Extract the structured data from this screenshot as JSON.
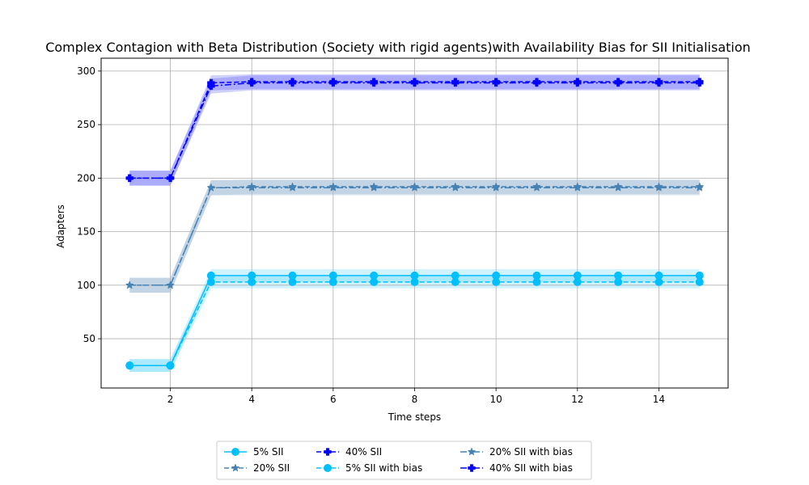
{
  "chart_data": {
    "type": "line",
    "title": "Complex Contagion with Beta Distribution (Society with rigid agents)with Availability Bias for SII Initialisation",
    "xlabel": "Time steps",
    "ylabel": "Adapters",
    "xlim": [
      0.3,
      15.7
    ],
    "ylim": [
      4,
      312
    ],
    "xticks": [
      2,
      4,
      6,
      8,
      10,
      12,
      14
    ],
    "yticks": [
      50,
      100,
      150,
      200,
      250,
      300
    ],
    "grid": true,
    "legend_position": "bottom-center, below axes, 3 columns",
    "x": [
      1,
      2,
      3,
      4,
      5,
      6,
      7,
      8,
      9,
      10,
      11,
      12,
      13,
      14,
      15
    ],
    "series": [
      {
        "name": "5% SII",
        "color": "#00bfff",
        "linestyle": "solid",
        "marker": "circle",
        "values": [
          25,
          25,
          109,
          109,
          109,
          109,
          109,
          109,
          109,
          109,
          109,
          109,
          109,
          109,
          109
        ],
        "band": 6
      },
      {
        "name": "20% SII",
        "color": "#4682b4",
        "linestyle": "dashed",
        "marker": "star",
        "values": [
          100,
          100,
          191,
          192,
          192,
          192,
          192,
          192,
          192,
          192,
          192,
          192,
          192,
          192,
          192
        ],
        "band": 7
      },
      {
        "name": "40% SII",
        "color": "#0000ff",
        "linestyle": "dashed",
        "marker": "plus",
        "values": [
          200,
          200,
          289,
          290,
          290,
          290,
          290,
          290,
          290,
          290,
          290,
          290,
          290,
          290,
          290
        ],
        "band": 7
      },
      {
        "name": "5% SII with bias",
        "color": "#00bfff",
        "linestyle": "dashed",
        "marker": "circle",
        "values": [
          25,
          25,
          103,
          103,
          103,
          103,
          103,
          103,
          103,
          103,
          103,
          103,
          103,
          103,
          103
        ],
        "band": 6
      },
      {
        "name": "20% SII with bias",
        "color": "#4682b4",
        "linestyle": "dashdot",
        "marker": "star",
        "values": [
          100,
          100,
          191,
          191,
          191,
          191,
          191,
          191,
          191,
          191,
          191,
          191,
          191,
          191,
          191
        ],
        "band": 7
      },
      {
        "name": "40% SII with bias",
        "color": "#0000ff",
        "linestyle": "dashdot",
        "marker": "plus",
        "values": [
          200,
          200,
          286,
          289,
          289,
          289,
          289,
          289,
          289,
          289,
          289,
          289,
          289,
          289,
          289
        ],
        "band": 7
      }
    ]
  }
}
